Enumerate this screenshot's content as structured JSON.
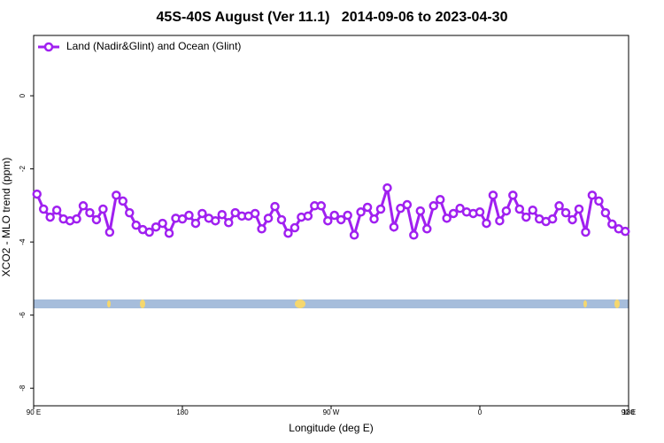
{
  "chart_data": {
    "type": "line",
    "title": "45S-40S August (Ver 11.1)   2014-09-06 to 2023-04-30",
    "xlabel": "Longitude (deg E)",
    "ylabel": "XCO2 - MLO trend (ppm)",
    "legend": "top-left",
    "xlim": [
      90,
      450
    ],
    "xticks": [
      {
        "value": 90,
        "label": "90 E"
      },
      180,
      {
        "value": 270,
        "label": "90 W"
      },
      {
        "value": 360,
        "label": "0"
      },
      {
        "value": 450,
        "label": "90 E"
      },
      {
        "value": 540,
        "label": "180"
      }
    ],
    "ylim": [
      -8.48,
      1.65
    ],
    "yticks": [
      0,
      -2,
      -4,
      -6,
      -8
    ],
    "x": [
      92,
      96,
      100,
      104,
      108,
      112,
      116,
      120,
      124,
      128,
      132,
      136,
      140,
      144,
      148,
      152,
      156,
      160,
      164,
      168,
      172,
      176,
      180,
      184,
      188,
      192,
      196,
      200,
      204,
      208,
      212,
      216,
      220,
      224,
      228,
      232,
      236,
      240,
      244,
      248,
      252,
      256,
      260,
      264,
      268,
      272,
      276,
      280,
      284,
      288,
      292,
      296,
      300,
      304,
      308,
      312,
      316,
      320,
      324,
      328,
      332,
      336,
      340,
      344,
      348,
      352,
      356,
      360,
      364,
      368,
      372,
      376,
      380,
      384,
      388,
      392,
      396,
      400,
      404,
      408,
      412,
      416,
      420,
      424,
      428,
      432,
      436,
      440,
      444,
      448
    ],
    "series": [
      {
        "name": "Land (Nadir&Glint) and Ocean (Glint)",
        "color": "#a020f0",
        "values": [
          -2.69,
          -3.1,
          -3.32,
          -3.13,
          -3.37,
          -3.42,
          -3.37,
          -3.01,
          -3.2,
          -3.39,
          -3.1,
          -3.73,
          -2.72,
          -2.88,
          -3.2,
          -3.54,
          -3.66,
          -3.73,
          -3.59,
          -3.49,
          -3.76,
          -3.35,
          -3.37,
          -3.27,
          -3.49,
          -3.22,
          -3.35,
          -3.42,
          -3.25,
          -3.47,
          -3.2,
          -3.29,
          -3.29,
          -3.22,
          -3.64,
          -3.35,
          -3.03,
          -3.39,
          -3.76,
          -3.61,
          -3.32,
          -3.29,
          -3.01,
          -3.01,
          -3.42,
          -3.27,
          -3.39,
          -3.27,
          -3.81,
          -3.18,
          -3.05,
          -3.37,
          -3.1,
          -2.52,
          -3.59,
          -3.08,
          -2.98,
          -3.81,
          -3.15,
          -3.64,
          -3.01,
          -2.84,
          -3.35,
          -3.22,
          -3.08,
          -3.18,
          -3.22,
          -3.18,
          -3.49,
          -2.72,
          -3.42,
          -3.15,
          -2.72,
          -3.1,
          -3.32,
          -3.13,
          -3.37,
          -3.44,
          -3.37,
          -3.01,
          -3.2,
          -3.39,
          -3.1,
          -3.73,
          -2.72,
          -2.88,
          -3.2,
          -3.51,
          -3.64,
          -3.71
        ]
      }
    ]
  }
}
